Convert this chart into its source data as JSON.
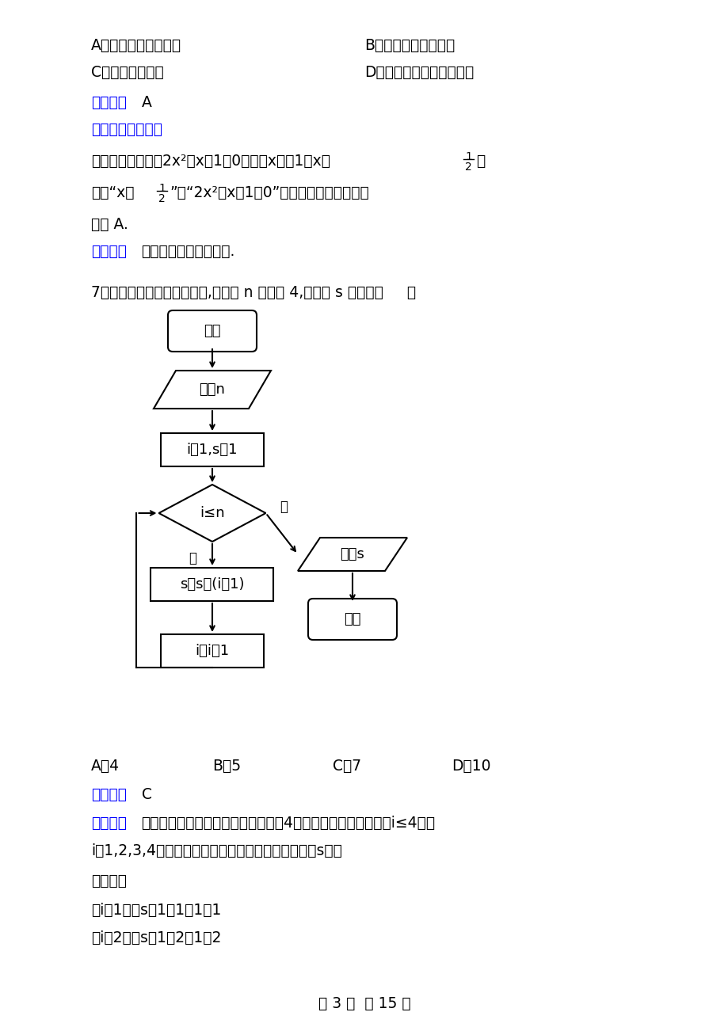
{
  "bg_color": "#ffffff",
  "blue_color": "#0000FF",
  "line1_A": "A．充分而不必要条件",
  "line1_B": "B．必要而不充分条件",
  "line2_C": "C．充分必要条件",
  "line2_D": "D．既不充分也不必要条件",
  "answer_label": "》答案「",
  "answer_label2": "【答案】",
  "answer_A": "A",
  "jiexi_label": "【解析】【详解】",
  "para1_main": "由题意得，不等式2x²＋x－1＞0，解得x＜－1或x＞",
  "para1_comma": "，",
  "para2_start": "所以“x＞",
  "para2_end": "”是“2x²＋x－1＞0”的充分而不必要条件，",
  "para3": "故选 A.",
  "kaodian_label": "【考点】",
  "kaodian_text": "充分不必要条件的判定.",
  "q7_text": "7．执行如图所示的程序框图,若输入 n 的値为 4,则输出 s 的値为（     ）",
  "fc_start_label": "开始",
  "fc_input_label": "输入n",
  "fc_init_label": "i＝1,s＝1",
  "fc_cond_label": "i≤n",
  "fc_yes_label": "是",
  "fc_no_label": "否",
  "fc_body_label": "s＝s＋(i－1)",
  "fc_incr_label": "i＝i＋1",
  "fc_output_label": "输出s",
  "fc_end_label": "结束",
  "choices_q7_A": "A．4",
  "choices_q7_B": "B．5",
  "choices_q7_C": "C．7",
  "choices_q7_D": "D．10",
  "answer2_val": "C",
  "jiexi2_label": "【解析】",
  "jiexi2_text": "由已知中的程序框图以及已知中输入4可得：进入循环的条件为i≤4，即",
  "jiexi2_line2": "i＝1,2,3,4，模拟程序的运行结果，即可得到输出的s値。",
  "xiangjie_label": "【详解】",
  "calc1": "当i＝1时，s＝1＋1－1＝1",
  "calc2": "当i＝2时，s＝1＋2－1＝2",
  "footer": "第 3 页  共 15 页"
}
